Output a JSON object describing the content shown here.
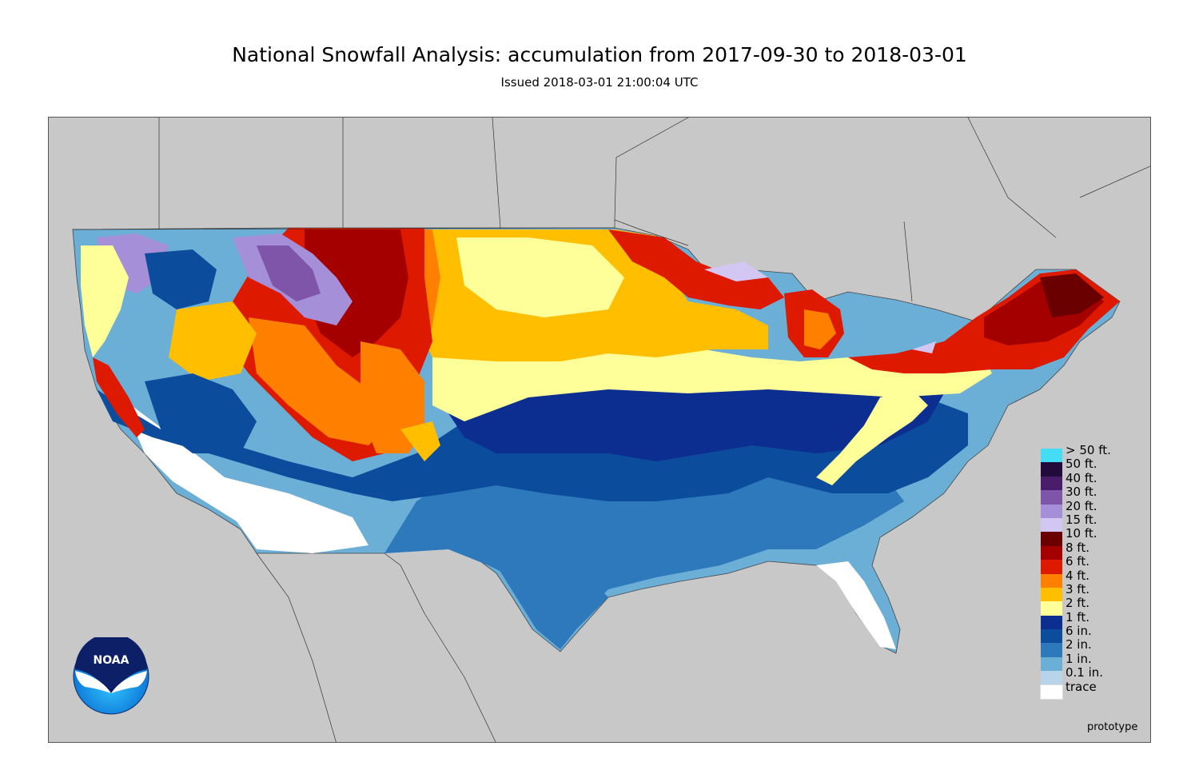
{
  "title": "National Snowfall Analysis: accumulation from 2017-09-30 to 2018-03-01",
  "subtitle": "Issued 2018-03-01 21:00:04 UTC",
  "prototype": "prototype",
  "logo": {
    "text": "NOAA"
  },
  "legend": [
    {
      "label": "> 50 ft.",
      "color": "#44ddf5"
    },
    {
      "label": "50 ft.",
      "color": "#220a3c"
    },
    {
      "label": "40 ft.",
      "color": "#4a1c6a"
    },
    {
      "label": "30 ft.",
      "color": "#7e55a8"
    },
    {
      "label": "20 ft.",
      "color": "#a48fd8"
    },
    {
      "label": "15 ft.",
      "color": "#d2c6f2"
    },
    {
      "label": "10 ft.",
      "color": "#6b0000"
    },
    {
      "label": "8 ft.",
      "color": "#a50000"
    },
    {
      "label": "6 ft.",
      "color": "#dd1a00"
    },
    {
      "label": "4 ft.",
      "color": "#ff7f00"
    },
    {
      "label": "3 ft.",
      "color": "#ffbf00"
    },
    {
      "label": "2 ft.",
      "color": "#ffff99"
    },
    {
      "label": "1 ft.",
      "color": "#0d2e91"
    },
    {
      "label": "6 in.",
      "color": "#0b4c9c"
    },
    {
      "label": "2 in.",
      "color": "#2e78bc"
    },
    {
      "label": "1 in.",
      "color": "#6baed6"
    },
    {
      "label": "0.1 in.",
      "color": "#b7d4ea"
    },
    {
      "label": "trace",
      "color": "#ffffff"
    }
  ]
}
